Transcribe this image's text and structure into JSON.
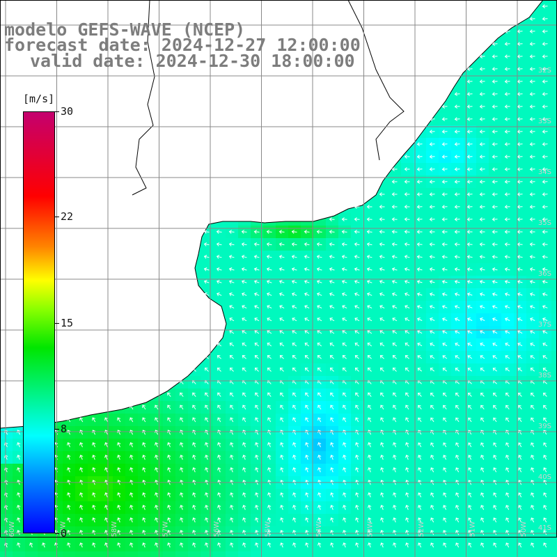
{
  "title": {
    "line1": "modelo GEFS-WAVE (NCEP)",
    "line2": "forecast date: 2024-12-27 12:00:00",
    "line3": "valid date: 2024-12-30 18:00:00"
  },
  "colorbar": {
    "unit": "[m/s]",
    "ticks": [
      {
        "label": "30",
        "value": 30
      },
      {
        "label": "22",
        "value": 22
      },
      {
        "label": "15",
        "value": 15
      },
      {
        "label": "8",
        "value": 8
      },
      {
        "label": "0",
        "value": 0
      }
    ],
    "colors": [
      "#0000ff",
      "#0096ff",
      "#00ffff",
      "#00e600",
      "#88ff00",
      "#ffff00",
      "#ff8400",
      "#ff0000",
      "#c4006e"
    ]
  },
  "map": {
    "lat_labels": [
      "32S",
      "33S",
      "34S",
      "35S",
      "36S",
      "37S",
      "38S",
      "39S",
      "40S",
      "41S"
    ],
    "lon_labels": [
      "60W",
      "59W",
      "58W",
      "57W",
      "56W",
      "55W",
      "54W",
      "53W",
      "52W",
      "51W",
      "50W"
    ],
    "land_color": "#ffffff",
    "grid_color": "#888888",
    "arrow_color": "#ffffff"
  }
}
